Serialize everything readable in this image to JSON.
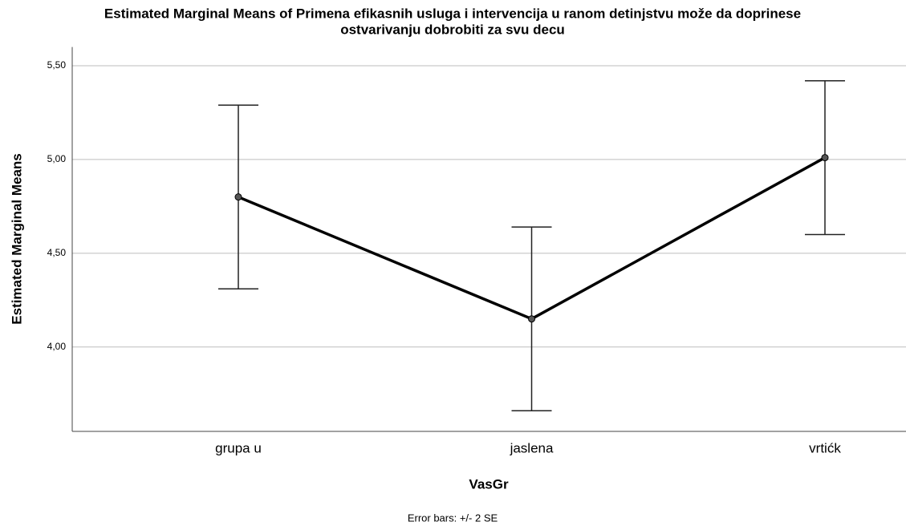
{
  "chart_data": {
    "type": "line",
    "title": [
      "Estimated Marginal Means of Primena efikasnih usluga i intervencija u ranom detinjstvu može da doprinese",
      "ostvarivanju dobrobiti za svu decu"
    ],
    "x_label": "VasGr",
    "y_label": "Estimated Marginal Means",
    "annotation": "Error bars: +/- 2 SE",
    "categories": [
      "grupa u",
      "jaslena",
      "vrtićk"
    ],
    "series": [
      {
        "name": "Estimated Marginal Means",
        "color": "#000000",
        "values": [
          4.8,
          4.15,
          5.01
        ],
        "errors": [
          0.49,
          0.49,
          0.41
        ]
      }
    ],
    "ylim": [
      3.55,
      5.6
    ],
    "yticks": [
      {
        "value": 4.0,
        "label": "4,00"
      },
      {
        "value": 4.5,
        "label": "4,50"
      },
      {
        "value": 5.0,
        "label": "5,00"
      },
      {
        "value": 5.5,
        "label": "5,50"
      }
    ],
    "grid": true
  }
}
